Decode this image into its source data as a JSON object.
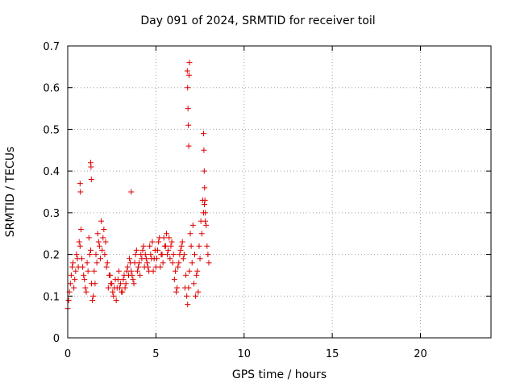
{
  "chart_data": {
    "type": "scatter",
    "title": "Day 091 of 2024, SRMTID for receiver toil",
    "xlabel": "GPS time / hours",
    "ylabel": "SRMTID / TECUs",
    "xlim": [
      0,
      24
    ],
    "ylim": [
      0,
      0.7
    ],
    "xticks": [
      0,
      5,
      10,
      15,
      20
    ],
    "xtick_labels": [
      "0",
      "5",
      "10",
      "15",
      "20"
    ],
    "yticks": [
      0,
      0.1,
      0.2,
      0.3,
      0.4,
      0.5,
      0.6,
      0.7
    ],
    "ytick_labels": [
      "0",
      "0.1",
      "0.2",
      "0.3",
      "0.4",
      "0.5",
      "0.6",
      "0.7"
    ],
    "grid": true,
    "marker": "+",
    "color": "#dd0000",
    "series": [
      {
        "name": "SRMTID",
        "x": [
          0.0,
          0.1,
          0.2,
          0.3,
          0.4,
          0.5,
          0.6,
          0.7,
          0.75,
          0.8,
          0.9,
          1.0,
          1.1,
          1.2,
          1.3,
          1.35,
          1.4,
          1.5,
          1.6,
          1.7,
          1.8,
          1.9,
          2.0,
          2.1,
          2.2,
          2.3,
          2.4,
          2.5,
          2.6,
          2.7,
          2.8,
          2.9,
          3.0,
          3.1,
          3.2,
          3.3,
          3.4,
          3.5,
          3.6,
          3.7,
          3.8,
          3.9,
          4.0,
          4.1,
          4.2,
          4.3,
          4.4,
          4.5,
          4.6,
          4.7,
          4.8,
          4.9,
          5.0,
          5.1,
          5.2,
          5.3,
          5.4,
          5.5,
          5.6,
          5.7,
          5.8,
          5.9,
          6.0,
          6.1,
          6.2,
          6.3,
          6.4,
          6.5,
          6.6,
          6.7,
          6.75,
          6.8,
          6.85,
          6.9,
          7.0,
          7.1,
          7.2,
          7.3,
          7.4,
          7.5,
          7.6,
          7.7,
          7.8,
          7.9,
          8.0,
          0.05,
          0.15,
          0.25,
          0.35,
          0.45,
          0.55,
          0.65,
          0.85,
          0.95,
          1.05,
          1.15,
          1.25,
          1.45,
          1.55,
          1.65,
          1.75,
          1.85,
          1.95,
          2.05,
          2.15,
          2.25,
          2.35,
          2.45,
          2.55,
          2.65,
          2.75,
          2.85,
          2.95,
          3.05,
          3.15,
          3.25,
          3.35,
          3.45,
          3.55,
          3.65,
          3.75,
          3.85,
          3.95,
          4.05,
          4.15,
          4.25,
          4.35,
          4.45,
          4.55,
          4.65,
          4.75,
          4.85,
          4.95,
          5.05,
          5.15,
          5.25,
          5.35,
          5.45,
          5.55,
          5.65,
          5.75,
          5.85,
          5.95,
          6.05,
          6.15,
          6.25,
          6.35,
          6.45,
          6.55,
          6.65,
          6.95,
          7.05,
          7.15,
          7.25,
          7.35,
          7.45,
          7.55,
          7.65,
          7.75,
          7.85,
          7.95,
          0.7,
          0.72,
          1.3,
          1.32,
          1.34,
          3.6,
          6.78,
          6.8,
          6.82,
          6.84,
          6.86,
          6.88,
          6.9,
          7.7,
          7.72,
          7.74,
          7.76,
          7.78,
          7.8
        ],
        "y": [
          0.07,
          0.11,
          0.15,
          0.18,
          0.14,
          0.2,
          0.17,
          0.22,
          0.26,
          0.19,
          0.15,
          0.12,
          0.18,
          0.24,
          0.21,
          0.13,
          0.09,
          0.16,
          0.2,
          0.25,
          0.22,
          0.28,
          0.24,
          0.2,
          0.17,
          0.12,
          0.15,
          0.13,
          0.1,
          0.14,
          0.12,
          0.16,
          0.13,
          0.11,
          0.15,
          0.13,
          0.17,
          0.19,
          0.16,
          0.14,
          0.18,
          0.21,
          0.17,
          0.15,
          0.19,
          0.22,
          0.2,
          0.18,
          0.16,
          0.2,
          0.23,
          0.19,
          0.17,
          0.21,
          0.24,
          0.2,
          0.18,
          0.22,
          0.25,
          0.21,
          0.19,
          0.23,
          0.2,
          0.16,
          0.12,
          0.18,
          0.21,
          0.23,
          0.2,
          0.15,
          0.1,
          0.08,
          0.12,
          0.16,
          0.22,
          0.27,
          0.2,
          0.15,
          0.11,
          0.19,
          0.25,
          0.3,
          0.28,
          0.22,
          0.18,
          0.09,
          0.13,
          0.17,
          0.12,
          0.16,
          0.19,
          0.23,
          0.17,
          0.14,
          0.11,
          0.16,
          0.2,
          0.1,
          0.13,
          0.18,
          0.23,
          0.19,
          0.21,
          0.26,
          0.23,
          0.18,
          0.15,
          0.13,
          0.11,
          0.12,
          0.09,
          0.14,
          0.12,
          0.11,
          0.14,
          0.12,
          0.16,
          0.15,
          0.18,
          0.15,
          0.13,
          0.2,
          0.16,
          0.18,
          0.2,
          0.21,
          0.17,
          0.19,
          0.17,
          0.22,
          0.19,
          0.16,
          0.21,
          0.19,
          0.23,
          0.17,
          0.2,
          0.24,
          0.22,
          0.2,
          0.24,
          0.22,
          0.18,
          0.14,
          0.11,
          0.17,
          0.2,
          0.22,
          0.19,
          0.12,
          0.25,
          0.18,
          0.13,
          0.1,
          0.16,
          0.22,
          0.28,
          0.33,
          0.32,
          0.27,
          0.2,
          0.37,
          0.35,
          0.42,
          0.41,
          0.38,
          0.35,
          0.64,
          0.6,
          0.55,
          0.51,
          0.46,
          0.63,
          0.66,
          0.49,
          0.45,
          0.4,
          0.36,
          0.33,
          0.3
        ]
      }
    ]
  }
}
